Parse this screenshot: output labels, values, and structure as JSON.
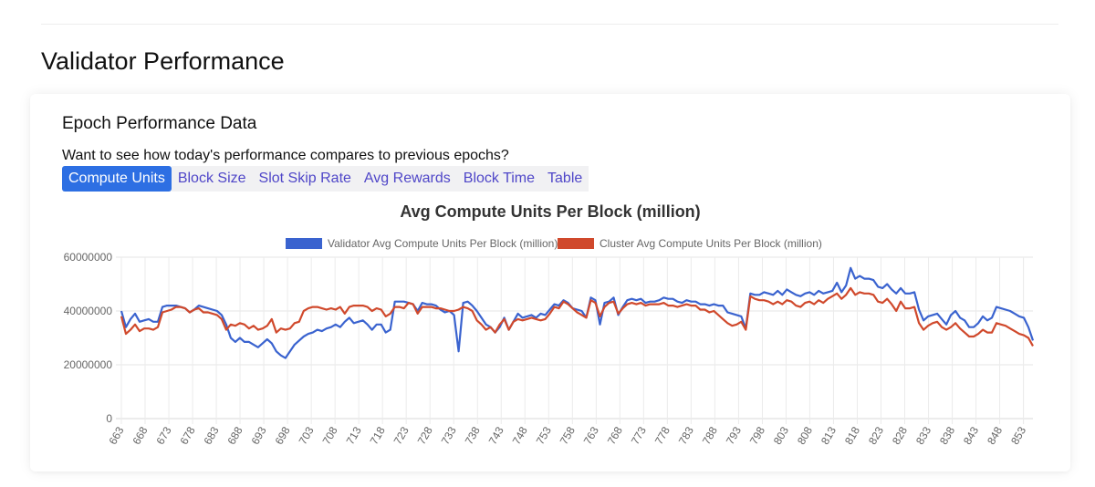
{
  "header": {
    "title": "Validator Performance"
  },
  "card": {
    "title": "Epoch Performance Data",
    "prompt": "Want to see how today's performance compares to previous epochs?",
    "tabs": [
      {
        "label": "Compute Units",
        "active": true
      },
      {
        "label": "Block Size",
        "active": false
      },
      {
        "label": "Slot Skip Rate",
        "active": false
      },
      {
        "label": "Avg Rewards",
        "active": false
      },
      {
        "label": "Block Time",
        "active": false
      },
      {
        "label": "Table",
        "active": false
      }
    ]
  },
  "chart_data": {
    "type": "line",
    "title": "Avg Compute Units Per Block  (million)",
    "xlabel": "",
    "ylabel": "",
    "x_start": 663,
    "x_end": 855,
    "x_tick_labels": [
      "663",
      "668",
      "673",
      "678",
      "683",
      "688",
      "693",
      "698",
      "703",
      "708",
      "713",
      "718",
      "723",
      "728",
      "733",
      "738",
      "743",
      "748",
      "753",
      "758",
      "763",
      "768",
      "773",
      "778",
      "783",
      "788",
      "793",
      "798",
      "803",
      "808",
      "813",
      "818",
      "823",
      "828",
      "833",
      "838",
      "843",
      "848",
      "853"
    ],
    "y_tick_labels": [
      "0",
      "20000000",
      "40000000",
      "60000000"
    ],
    "ylim": [
      0,
      60000000
    ],
    "grid": true,
    "legend_position": "top",
    "series": [
      {
        "name": "Validator Avg Compute Units Per Block  (million)",
        "color": "#3a63cf",
        "values": [
          40000000,
          34000000,
          37000000,
          39000000,
          36000000,
          36500000,
          37000000,
          36000000,
          36000000,
          41500000,
          42000000,
          42000000,
          42000000,
          41500000,
          41000000,
          39500000,
          40500000,
          42000000,
          41500000,
          41000000,
          40500000,
          40000000,
          38500000,
          35000000,
          30000000,
          28500000,
          30000000,
          28500000,
          28500000,
          27500000,
          26500000,
          28000000,
          29500000,
          28000000,
          25000000,
          23500000,
          22500000,
          25000000,
          27500000,
          29000000,
          30500000,
          31500000,
          32000000,
          33000000,
          32500000,
          33500000,
          34000000,
          35000000,
          34000000,
          36000000,
          37500000,
          35500000,
          36000000,
          36500000,
          35000000,
          33000000,
          35000000,
          35000000,
          32000000,
          33000000,
          43500000,
          43500000,
          43500000,
          43000000,
          42500000,
          40000000,
          43000000,
          42500000,
          42500000,
          42000000,
          40500000,
          39500000,
          40000000,
          38500000,
          25000000,
          43000000,
          43500000,
          42000000,
          40000000,
          37500000,
          35000000,
          34000000,
          32000000,
          34000000,
          37500000,
          33000000,
          36000000,
          39000000,
          37500000,
          38000000,
          38500000,
          37500000,
          39000000,
          38500000,
          40500000,
          42500000,
          42000000,
          44000000,
          43000000,
          41000000,
          40500000,
          40000000,
          37500000,
          45000000,
          44000000,
          35000000,
          43000000,
          43500000,
          45000000,
          38500000,
          41500000,
          44000000,
          44500000,
          44000000,
          44500000,
          43000000,
          43500000,
          43500000,
          44000000,
          45000000,
          44500000,
          44500000,
          43500000,
          43000000,
          44000000,
          43500000,
          43500000,
          42500000,
          42500000,
          42000000,
          42500000,
          42000000,
          42000000,
          39500000,
          39000000,
          38500000,
          38000000,
          33500000,
          46500000,
          46000000,
          46000000,
          47000000,
          46500000,
          46000000,
          47500000,
          46000000,
          48000000,
          47000000,
          46000000,
          45500000,
          46500000,
          47000000,
          46000000,
          47500000,
          46500000,
          47000000,
          47500000,
          50500000,
          47000000,
          49500000,
          56000000,
          52000000,
          53000000,
          52000000,
          52000000,
          51500000,
          49000000,
          48500000,
          50000000,
          48000000,
          46500000,
          48500000,
          46500000,
          46500000,
          47000000,
          40500000,
          36500000,
          38000000,
          38500000,
          39000000,
          37000000,
          35000000,
          38500000,
          40000000,
          37500000,
          36500000,
          34000000,
          34000000,
          35500000,
          38000000,
          36500000,
          37500000,
          41500000,
          41000000,
          40500000,
          40000000,
          39000000,
          38000000,
          37500000,
          34000000,
          29000000
        ]
      },
      {
        "name": "Cluster Avg Compute Units Per Block  (million)",
        "color": "#d0492c",
        "values": [
          38000000,
          31500000,
          33000000,
          35000000,
          32500000,
          33500000,
          33500000,
          33000000,
          34000000,
          39500000,
          40000000,
          40500000,
          41500000,
          41500000,
          41000000,
          39500000,
          40500000,
          41000000,
          39500000,
          39500000,
          39000000,
          38500000,
          37000000,
          33000000,
          35000000,
          34500000,
          35500000,
          35000000,
          33500000,
          34500000,
          33000000,
          33500000,
          34500000,
          37000000,
          32000000,
          33500000,
          33000000,
          33500000,
          35500000,
          36000000,
          40000000,
          41000000,
          41500000,
          41500000,
          41000000,
          40500000,
          41000000,
          40500000,
          41500000,
          39000000,
          41500000,
          42000000,
          42000000,
          42000000,
          41500000,
          40000000,
          41000000,
          40500000,
          38000000,
          39000000,
          41500000,
          41500000,
          41000000,
          43000000,
          42500000,
          39000000,
          41500000,
          41500000,
          41500000,
          41000000,
          41000000,
          40500000,
          40000000,
          40000000,
          40500000,
          41500000,
          41000000,
          40000000,
          36500000,
          35000000,
          33000000,
          34000000,
          32000000,
          35000000,
          37000000,
          33000000,
          36000000,
          37000000,
          36500000,
          37000000,
          37500000,
          37000000,
          36500000,
          37000000,
          39000000,
          41500000,
          41000000,
          43500000,
          42500000,
          41000000,
          39500000,
          38500000,
          37500000,
          44000000,
          43000000,
          38000000,
          41500000,
          43000000,
          43500000,
          39000000,
          41000000,
          42500000,
          43000000,
          42500000,
          43000000,
          42000000,
          42500000,
          42500000,
          42500000,
          43000000,
          42000000,
          42000000,
          41500000,
          42000000,
          42500000,
          42000000,
          42000000,
          40500000,
          40500000,
          39500000,
          40000000,
          38500000,
          37000000,
          35500000,
          34500000,
          35000000,
          36000000,
          33000000,
          45500000,
          44500000,
          44000000,
          44000000,
          43500000,
          42500000,
          43500000,
          42500000,
          44000000,
          43500000,
          42000000,
          41500000,
          43000000,
          43500000,
          42500000,
          44000000,
          43000000,
          44500000,
          45500000,
          46500000,
          44500000,
          46000000,
          48500000,
          46000000,
          47000000,
          46500000,
          46500000,
          46000000,
          43500000,
          43000000,
          44500000,
          42500000,
          40000000,
          43500000,
          41000000,
          41000000,
          41500000,
          35500000,
          33000000,
          34500000,
          35500000,
          36000000,
          34000000,
          33000000,
          34000000,
          35500000,
          33500000,
          32000000,
          30500000,
          30500000,
          31500000,
          33000000,
          32000000,
          32000000,
          35500000,
          35000000,
          34500000,
          33500000,
          32500000,
          31500000,
          31000000,
          30000000,
          27000000
        ]
      }
    ]
  }
}
